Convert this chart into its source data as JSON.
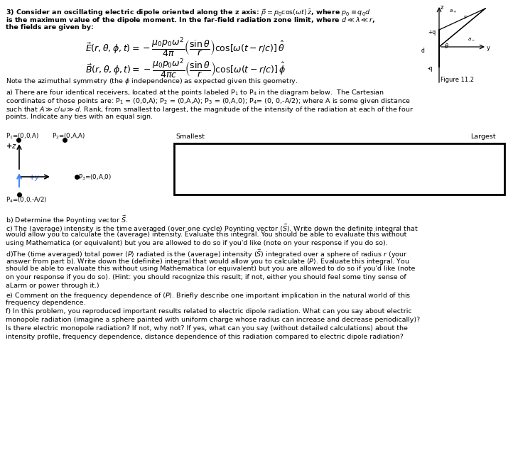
{
  "bg_color": "#ffffff",
  "text_color": "#000000",
  "blue_color": "#1a1aee",
  "fig_width": 7.22,
  "fig_height": 6.38,
  "dpi": 100,
  "fs_body": 6.8,
  "fs_small": 6.2,
  "fs_eq": 9.0,
  "fs_fig": 6.0,
  "lines": [
    "3) Consider an oscillating electric dipole oriented along the z axis: $\\vec{p} = p_0 \\cos(\\omega t)\\, \\hat{z}$, where $p_0 \\equiv q_0 d$",
    "is the maximum value of the dipole moment. In the far-field radiation zone limit, where $d \\ll \\lambda \\ll r$,",
    "the fields are given by:"
  ],
  "note_line": "Note the azimuthal symmetry (the $\\phi$ independence) as expected given this geometry.",
  "fig_label": "Figure 11.2",
  "part_a_lines": [
    "a) There are four identical receivers, located at the points labeled P$_1$ to P$_4$ in the diagram below.  The Cartesian",
    "coordinates of those points are: P$_1$ = (0,0,A); P$_2$ = (0,A,A); P$_3$ = (0,A,0); P$_4$= (0, 0,-A/2); where A is some given distance",
    "such that $A \\gg c/\\omega \\gg d$. Rank, from smallest to largest, the magnitude of the intensity of the radiation at each of the four",
    "points. Indicate any ties with an equal sign."
  ],
  "p1_label": "P$_1$=(0,0,A)",
  "p2_label": "P$_2$=(0,A,A)",
  "p3_label": "P$_3$=(0,A,0)",
  "p4_label": "P$_4$=(0,0,-A/2)",
  "smallest_label": "Smallest",
  "largest_label": "Largest",
  "part_b": "b) Determine the Poynting vector $\\vec{S}$.",
  "part_c_lines": [
    "c) The (average) intensity is the time averaged (over one cycle) Poynting vector $\\langle\\vec{S}\\rangle$. Write down the definite integral that",
    "would allow you to calculate the (average) intensity. Evaluate this integral. You should be able to evaluate this without",
    "using Mathematica (or equivalent) but you are allowed to do so if you'd like (note on your response if you do so)."
  ],
  "part_d_lines": [
    "d)The (time averaged) total power $\\langle P\\rangle$ radiated is the (average) intensity ($\\vec{S}$) integrated over a sphere of radius $r$ (your",
    "answer from part b). Write down the (definite) integral that would allow you to calculate $\\langle P\\rangle$. Evaluate this integral. You",
    "should be able to evaluate this without using Mathematica (or equivalent) but you are allowed to do so if you'd like (note",
    "on your response if you do so). (Hint: you should recognize this result; if not, either you should feel some tiny sense of",
    "aLarm or power through it.)"
  ],
  "part_e_lines": [
    "e) Comment on the frequency dependence of $\\langle P\\rangle$. Briefly describe one important implication in the natural world of this",
    "frequency dependence."
  ],
  "part_f_lines": [
    "f) In this problem, you reproduced important results related to electric dipole radiation. What can you say about electric",
    "monopole radiation (imagine a sphere painted with uniform charge whose radius can increase and decrease periodically)?",
    "Is there electric monopole radiation? If not, why not? If yes, what can you say (without detailed calculations) about the",
    "intensity profile, frequency dependence, distance dependence of this radiation compared to electric dipole radiation?"
  ]
}
